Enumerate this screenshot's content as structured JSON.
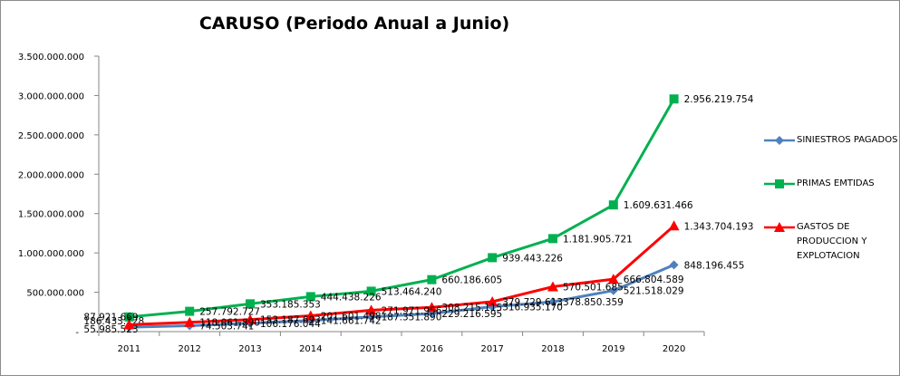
{
  "chart_data": {
    "type": "line",
    "title": "CARUSO (Periodo Anual a Junio)",
    "xlabel": "",
    "ylabel": "",
    "categories": [
      "2011",
      "2012",
      "2013",
      "2014",
      "2015",
      "2016",
      "2017",
      "2018",
      "2019",
      "2020"
    ],
    "ylim": [
      0,
      3500000000
    ],
    "y_ticks": [
      {
        "value": 0,
        "label": "-"
      },
      {
        "value": 500000000,
        "label": "500.000.000"
      },
      {
        "value": 1000000000,
        "label": "1.000.000.000"
      },
      {
        "value": 1500000000,
        "label": "1.500.000.000"
      },
      {
        "value": 2000000000,
        "label": "2.000.000.000"
      },
      {
        "value": 2500000000,
        "label": "2.500.000.000"
      },
      {
        "value": 3000000000,
        "label": "3.000.000.000"
      },
      {
        "value": 3500000000,
        "label": "3.500.000.000"
      }
    ],
    "grid": false,
    "legend": "right",
    "series": [
      {
        "name": "SINIESTROS PAGADOS",
        "color": "#4f81bd",
        "marker": "diamond",
        "values": [
          55985523,
          74503741,
          106176044,
          141661742,
          187351890,
          229216595,
          316935170,
          378850359,
          521518029,
          848196455
        ],
        "labels": [
          "55.985.523",
          "74.503.741",
          "106.176.044",
          "141.661.742",
          "187.351.890",
          "229.216.595",
          "316.935.170",
          "378.850.359",
          "521.518.029",
          "848.196.455"
        ]
      },
      {
        "name": "PRIMAS EMTIDAS",
        "color": "#00b050",
        "marker": "square",
        "values": [
          186433128,
          257792727,
          353185353,
          444438226,
          513464240,
          660186605,
          939443226,
          1181905721,
          1609631466,
          2956219754
        ],
        "labels": [
          "186.433.128",
          "257.792.727",
          "353.185.353",
          "444.438.226",
          "513.464.240",
          "660.186.605",
          "939.443.226",
          "1.181.905.721",
          "1.609.631.466",
          "2.956.219.754"
        ]
      },
      {
        "name": "GASTOS DE PRODUCCION Y EXPLOTACION",
        "color": "#ff0000",
        "marker": "triangle",
        "values": [
          87921669,
          118061890,
          153187693,
          201601498,
          271971956,
          308215115,
          379729613,
          570501685,
          666804589,
          1343704193
        ],
        "labels": [
          "87.921.669",
          "118.061.890",
          "153.187.693",
          "201.601.498",
          "271.971.956",
          "308.215.115",
          "379.729.613",
          "570.501.685",
          "666.804.589",
          "1.343.704.193"
        ]
      }
    ]
  }
}
